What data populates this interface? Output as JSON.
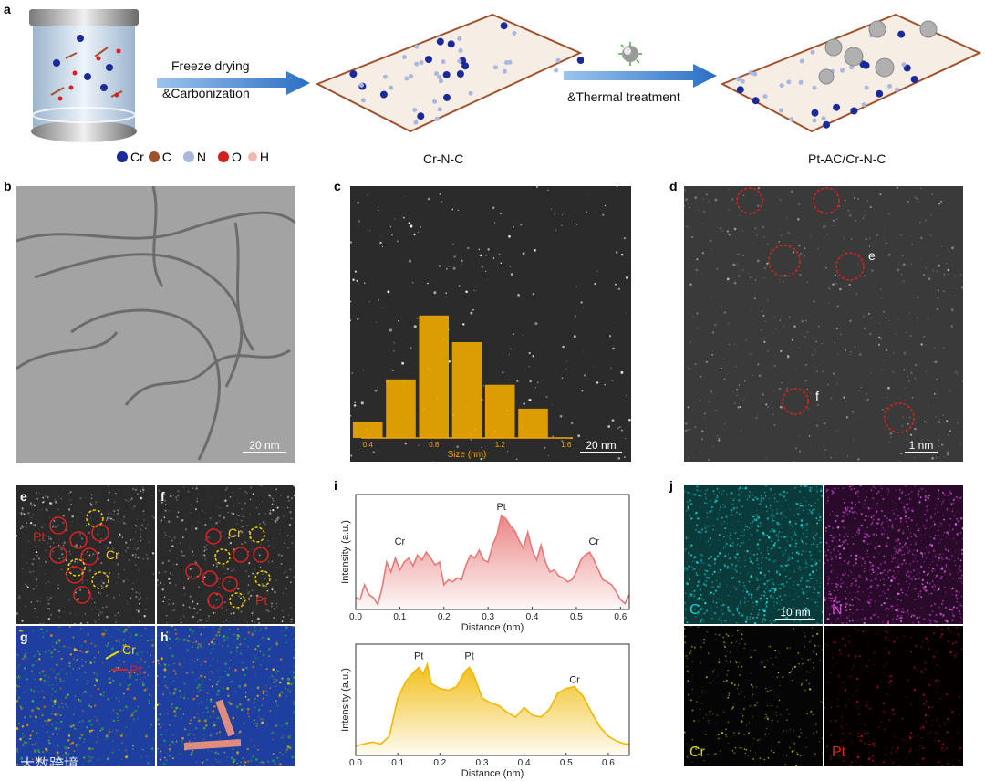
{
  "panels": {
    "a": "a",
    "b": "b",
    "c": "c",
    "d": "d",
    "e": "e",
    "f": "f",
    "g": "g",
    "h": "h",
    "i": "i",
    "j": "j"
  },
  "scheme": {
    "arrow1_top": "Freeze drying",
    "arrow1_bottom": "&Carbonization",
    "arrow2_bottom": "&Thermal treatment",
    "middle_caption": "Cr-N-C",
    "right_caption": "Pt-AC/Cr-N-C",
    "legend": [
      {
        "symbol": "Cr",
        "color": "#1a2a9a"
      },
      {
        "symbol": "C",
        "color": "#a0522d"
      },
      {
        "symbol": "N",
        "color": "#aab8e0"
      },
      {
        "symbol": "O",
        "color": "#d62020"
      },
      {
        "symbol": "H",
        "color": "#f0b8b0"
      }
    ]
  },
  "scalebars": {
    "b": "20 nm",
    "c": "20 nm",
    "d": "1 nm",
    "j": "10 nm"
  },
  "panel_d_markers": {
    "e": "e",
    "f": "f"
  },
  "panel_e": {
    "pt": "Pt",
    "cr": "Cr"
  },
  "panel_f": {
    "pt": "Pt",
    "cr": "Cr"
  },
  "panel_g": {
    "pt": "Pt",
    "cr": "Cr"
  },
  "panel_j": {
    "c": "C",
    "n": "N",
    "cr": "Cr",
    "pt": "Pt"
  },
  "watermark": "大数跨境",
  "chart_data": [
    {
      "type": "bar",
      "xlabel": "Size (nm)",
      "xticks": [
        "0.4",
        "0.8",
        "1.2",
        "1.6"
      ],
      "x": [
        0.4,
        0.6,
        0.8,
        1.0,
        1.2,
        1.4
      ],
      "values": [
        3,
        11,
        23,
        18,
        10,
        5.5
      ],
      "color": "#f0a800"
    },
    {
      "type": "line",
      "xlabel": "Distance (nm)",
      "ylabel": "Intensity (a.u.)",
      "xticks": [
        "0.0",
        "0.1",
        "0.2",
        "0.3",
        "0.4",
        "0.5",
        "0.6"
      ],
      "xlim": [
        0,
        0.62
      ],
      "ylim": [
        0,
        1
      ],
      "color": "#e87878",
      "annotations": [
        {
          "text": "Cr",
          "x": 0.1,
          "y": 0.6
        },
        {
          "text": "Pt",
          "x": 0.33,
          "y": 0.95
        },
        {
          "text": "Cr",
          "x": 0.54,
          "y": 0.6
        }
      ],
      "x": [
        0,
        0.01,
        0.02,
        0.03,
        0.04,
        0.05,
        0.06,
        0.07,
        0.08,
        0.09,
        0.1,
        0.11,
        0.12,
        0.13,
        0.14,
        0.15,
        0.16,
        0.17,
        0.18,
        0.19,
        0.2,
        0.21,
        0.22,
        0.23,
        0.24,
        0.25,
        0.26,
        0.27,
        0.28,
        0.29,
        0.3,
        0.31,
        0.32,
        0.33,
        0.34,
        0.35,
        0.36,
        0.37,
        0.38,
        0.39,
        0.4,
        0.41,
        0.42,
        0.43,
        0.44,
        0.45,
        0.46,
        0.47,
        0.48,
        0.49,
        0.5,
        0.51,
        0.52,
        0.53,
        0.54,
        0.55,
        0.56,
        0.57,
        0.58,
        0.59,
        0.6,
        0.61,
        0.62
      ],
      "y": [
        0.12,
        0.1,
        0.25,
        0.15,
        0.12,
        0.05,
        0.22,
        0.48,
        0.38,
        0.52,
        0.4,
        0.48,
        0.52,
        0.44,
        0.55,
        0.5,
        0.58,
        0.52,
        0.45,
        0.48,
        0.25,
        0.3,
        0.28,
        0.32,
        0.3,
        0.45,
        0.55,
        0.52,
        0.6,
        0.5,
        0.48,
        0.65,
        0.75,
        0.95,
        0.92,
        0.85,
        0.8,
        0.7,
        0.62,
        0.78,
        0.6,
        0.5,
        0.65,
        0.48,
        0.38,
        0.4,
        0.34,
        0.32,
        0.28,
        0.3,
        0.38,
        0.5,
        0.55,
        0.58,
        0.5,
        0.4,
        0.3,
        0.28,
        0.25,
        0.18,
        0.1,
        0.06,
        0.15
      ]
    },
    {
      "type": "line",
      "xlabel": "Distance (nm)",
      "ylabel": "Intensity (a.u.)",
      "xticks": [
        "0.0",
        "0.1",
        "0.2",
        "0.3",
        "0.4",
        "0.5",
        "0.6"
      ],
      "xlim": [
        0,
        0.65
      ],
      "ylim": [
        0,
        1
      ],
      "color": "#f0b800",
      "annotations": [
        {
          "text": "Pt",
          "x": 0.15,
          "y": 0.95
        },
        {
          "text": "Pt",
          "x": 0.27,
          "y": 0.95
        },
        {
          "text": "Cr",
          "x": 0.52,
          "y": 0.7
        }
      ],
      "x": [
        0,
        0.02,
        0.04,
        0.06,
        0.08,
        0.1,
        0.12,
        0.14,
        0.15,
        0.16,
        0.17,
        0.18,
        0.2,
        0.22,
        0.24,
        0.26,
        0.27,
        0.28,
        0.3,
        0.32,
        0.34,
        0.36,
        0.38,
        0.4,
        0.42,
        0.44,
        0.46,
        0.48,
        0.5,
        0.52,
        0.54,
        0.56,
        0.58,
        0.6,
        0.62,
        0.64,
        0.65
      ],
      "y": [
        0.1,
        0.12,
        0.14,
        0.12,
        0.2,
        0.6,
        0.78,
        0.88,
        0.92,
        0.85,
        0.95,
        0.75,
        0.7,
        0.68,
        0.72,
        0.88,
        0.92,
        0.85,
        0.6,
        0.55,
        0.52,
        0.45,
        0.4,
        0.5,
        0.42,
        0.4,
        0.48,
        0.65,
        0.7,
        0.72,
        0.62,
        0.45,
        0.3,
        0.2,
        0.15,
        0.12,
        0.12
      ]
    }
  ]
}
